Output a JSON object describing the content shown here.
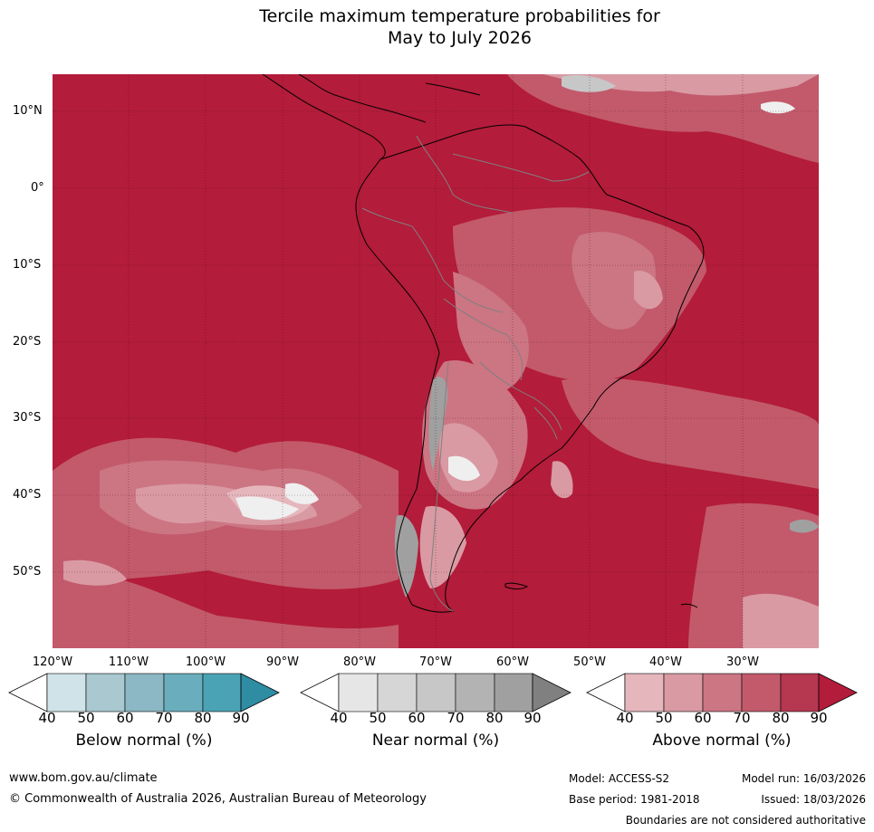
{
  "title": {
    "line1": "Tercile maximum temperature probabilities for",
    "line2": "May to July 2026"
  },
  "map": {
    "latitude_labels": [
      "10°N",
      "0°",
      "10°S",
      "20°S",
      "30°S",
      "40°S",
      "50°S"
    ],
    "longitude_labels": [
      "120°W",
      "110°W",
      "100°W",
      "90°W",
      "80°W",
      "70°W",
      "60°W",
      "50°W",
      "40°W",
      "30°W"
    ],
    "colors": {
      "ocean_dominant": "#b31c3a",
      "land_border": "#000000",
      "country_border": "#808080",
      "gridline": "#3a0a14"
    }
  },
  "legends": [
    {
      "title": "Below normal (%)",
      "ticks": [
        "40",
        "50",
        "60",
        "70",
        "80",
        "90"
      ],
      "colors": [
        "#ffffff",
        "#cfe3e8",
        "#a9c8cf",
        "#8bb8c4",
        "#6aaebd",
        "#4aa3b5",
        "#2e8ca3"
      ]
    },
    {
      "title": "Near normal (%)",
      "ticks": [
        "40",
        "50",
        "60",
        "70",
        "80",
        "90"
      ],
      "colors": [
        "#ffffff",
        "#e6e6e6",
        "#d6d6d6",
        "#c7c7c7",
        "#b3b3b3",
        "#a0a0a0",
        "#808080"
      ]
    },
    {
      "title": "Above normal (%)",
      "ticks": [
        "40",
        "50",
        "60",
        "70",
        "80",
        "90"
      ],
      "colors": [
        "#ffffff",
        "#e5b7bd",
        "#d99aa3",
        "#cc7583",
        "#c25a6b",
        "#b53750",
        "#b31c3a"
      ]
    }
  ],
  "footer": {
    "website": "www.bom.gov.au/climate",
    "copyright": "© Commonwealth of Australia 2026, Australian Bureau of Meteorology",
    "model": "Model: ACCESS-S2",
    "model_run": "Model run: 16/03/2026",
    "base_period": "Base period: 1981-2018",
    "issued": "Issued: 18/03/2026",
    "disclaimer": "Boundaries are not considered authoritative"
  }
}
